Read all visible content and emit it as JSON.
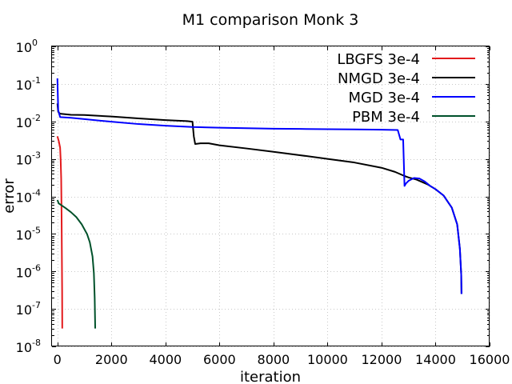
{
  "chart_data": {
    "type": "line",
    "title": "M1 comparison Monk 3",
    "xlabel": "iteration",
    "ylabel": "error",
    "xlim": [
      -200,
      16000
    ],
    "ylim_exponents": [
      -8,
      0
    ],
    "yscale": "log",
    "grid": true,
    "legend_position": "top-right",
    "x_ticks": [
      0,
      2000,
      4000,
      6000,
      8000,
      10000,
      12000,
      14000,
      16000
    ],
    "x_tick_labels": [
      "0",
      "2000",
      "4000",
      "6000",
      "8000",
      "10000",
      "12000",
      "14000",
      "16000"
    ],
    "y_ticks": [
      {
        "base": "10",
        "exp": "-8",
        "value": -8
      },
      {
        "base": "10",
        "exp": "-7",
        "value": -7
      },
      {
        "base": "10",
        "exp": "-6",
        "value": -6
      },
      {
        "base": "10",
        "exp": "-5",
        "value": -5
      },
      {
        "base": "10",
        "exp": "-4",
        "value": -4
      },
      {
        "base": "10",
        "exp": "-3",
        "value": -3
      },
      {
        "base": "10",
        "exp": "-2",
        "value": -2
      },
      {
        "base": "10",
        "exp": "-1",
        "value": -1
      },
      {
        "base": "10",
        "exp": "0",
        "value": 0
      }
    ],
    "series": [
      {
        "name": "LBGFS 3e-4",
        "color": "#e31a1c",
        "points": [
          [
            0,
            0.004
          ],
          [
            50,
            0.003
          ],
          [
            100,
            0.002
          ],
          [
            120,
            0.001
          ],
          [
            140,
            0.0003
          ],
          [
            155,
            3e-05
          ],
          [
            165,
            3e-06
          ],
          [
            175,
            3e-07
          ],
          [
            180,
            3e-08
          ]
        ]
      },
      {
        "name": "NMGD 3e-4",
        "color": "#000000",
        "points": [
          [
            0,
            0.03
          ],
          [
            30,
            0.018
          ],
          [
            100,
            0.016
          ],
          [
            500,
            0.015
          ],
          [
            1000,
            0.0148
          ],
          [
            2000,
            0.0135
          ],
          [
            3000,
            0.012
          ],
          [
            4000,
            0.0108
          ],
          [
            4800,
            0.0102
          ],
          [
            5000,
            0.0098
          ],
          [
            5050,
            0.004
          ],
          [
            5100,
            0.0025
          ],
          [
            5300,
            0.0026
          ],
          [
            5600,
            0.0026
          ],
          [
            6000,
            0.0023
          ],
          [
            7000,
            0.0019
          ],
          [
            8000,
            0.00155
          ],
          [
            9000,
            0.00125
          ],
          [
            10000,
            0.001
          ],
          [
            11000,
            0.0008
          ],
          [
            12000,
            0.00058
          ],
          [
            12500,
            0.00045
          ],
          [
            12850,
            0.00035
          ],
          [
            13000,
            0.00032
          ],
          [
            13300,
            0.00028
          ],
          [
            13700,
            0.00021
          ],
          [
            14000,
            0.000155
          ],
          [
            14300,
            0.000105
          ],
          [
            14600,
            5e-05
          ],
          [
            14800,
            1.8e-05
          ],
          [
            14900,
            4e-06
          ],
          [
            14950,
            8e-07
          ],
          [
            14960,
            2.5e-07
          ]
        ]
      },
      {
        "name": "MGD 3e-4",
        "color": "#0000ff",
        "points": [
          [
            0,
            0.14
          ],
          [
            30,
            0.02
          ],
          [
            100,
            0.013
          ],
          [
            500,
            0.0125
          ],
          [
            1000,
            0.0115
          ],
          [
            2000,
            0.0098
          ],
          [
            3000,
            0.0085
          ],
          [
            4000,
            0.0077
          ],
          [
            5000,
            0.0071
          ],
          [
            6000,
            0.0068
          ],
          [
            7000,
            0.0066
          ],
          [
            8000,
            0.0064
          ],
          [
            9000,
            0.0063
          ],
          [
            10000,
            0.0062
          ],
          [
            11000,
            0.0061
          ],
          [
            12000,
            0.006
          ],
          [
            12600,
            0.0059
          ],
          [
            12700,
            0.0033
          ],
          [
            12800,
            0.0033
          ],
          [
            12850,
            0.00019
          ],
          [
            12900,
            0.00022
          ],
          [
            13000,
            0.00026
          ],
          [
            13200,
            0.00031
          ],
          [
            13400,
            0.0003
          ],
          [
            13600,
            0.00025
          ],
          [
            13800,
            0.00019
          ],
          [
            14000,
            0.000155
          ],
          [
            14300,
            0.000105
          ],
          [
            14600,
            5e-05
          ],
          [
            14800,
            1.8e-05
          ],
          [
            14900,
            4e-06
          ],
          [
            14950,
            8e-07
          ],
          [
            14960,
            2.5e-07
          ]
        ]
      },
      {
        "name": "PBM 3e-4",
        "color": "#00512a",
        "points": [
          [
            0,
            8e-05
          ],
          [
            50,
            6.5e-05
          ],
          [
            150,
            5.8e-05
          ],
          [
            300,
            4.9e-05
          ],
          [
            500,
            3.8e-05
          ],
          [
            700,
            2.8e-05
          ],
          [
            900,
            1.8e-05
          ],
          [
            1100,
            9.8e-06
          ],
          [
            1200,
            6e-06
          ],
          [
            1300,
            2.5e-06
          ],
          [
            1350,
            9e-07
          ],
          [
            1380,
            2e-07
          ],
          [
            1400,
            3e-08
          ]
        ]
      }
    ]
  }
}
